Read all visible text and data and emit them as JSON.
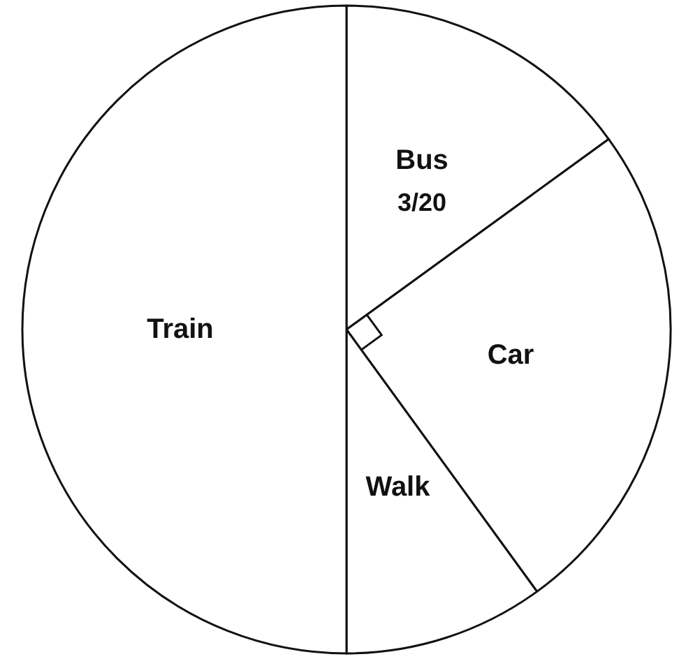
{
  "chart_data": {
    "type": "pie",
    "categories": [
      "Bus",
      "Car",
      "Walk",
      "Train"
    ],
    "values": [
      15,
      25,
      10,
      50
    ],
    "colors": [
      "#ffffff",
      "#ffffff",
      "#ffffff",
      "#ffffff"
    ],
    "value_labels": [
      null,
      null,
      null,
      null
    ],
    "annotations": [
      {
        "text": "3/20",
        "x": "Bus"
      }
    ],
    "legend": false
  }
}
